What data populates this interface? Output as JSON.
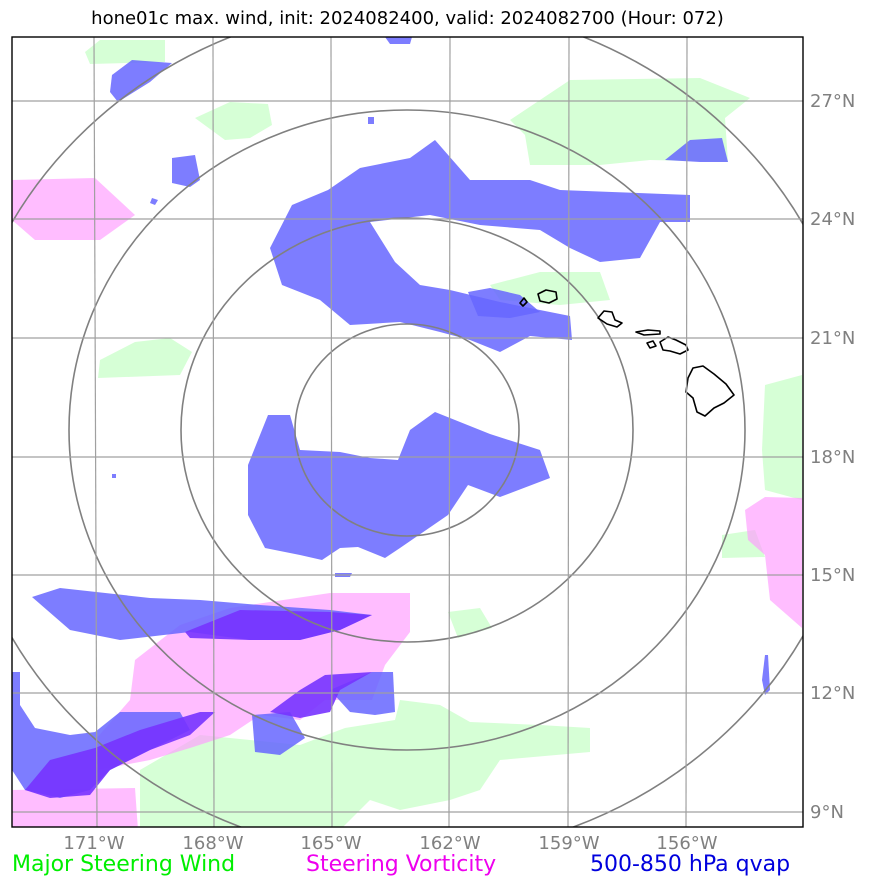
{
  "title": "hone01c max. wind, init: 2024082400, valid: 2024082700 (Hour: 072)",
  "map": {
    "lat_labels": [
      "27°N",
      "24°N",
      "21°N",
      "18°N",
      "15°N",
      "12°N",
      "9°N"
    ],
    "lon_labels": [
      "171°W",
      "168°W",
      "165°W",
      "162°W",
      "159°W",
      "156°W"
    ],
    "grid_color": "#a0a0a0",
    "ring_color": "#808080",
    "label_color": "#808080"
  },
  "layers": {
    "steering_wind": {
      "color": "#ccffcc"
    },
    "steering_vorticity": {
      "color": "#ff99ff"
    },
    "qvap": {
      "color": "#6666ff"
    }
  },
  "legend": [
    {
      "label": "Major Steering Wind",
      "color": "#00ee00"
    },
    {
      "label": "Steering Vorticity",
      "color": "#ee00ee"
    },
    {
      "label": "500-850 hPa qvap",
      "color": "#0000dd"
    }
  ]
}
